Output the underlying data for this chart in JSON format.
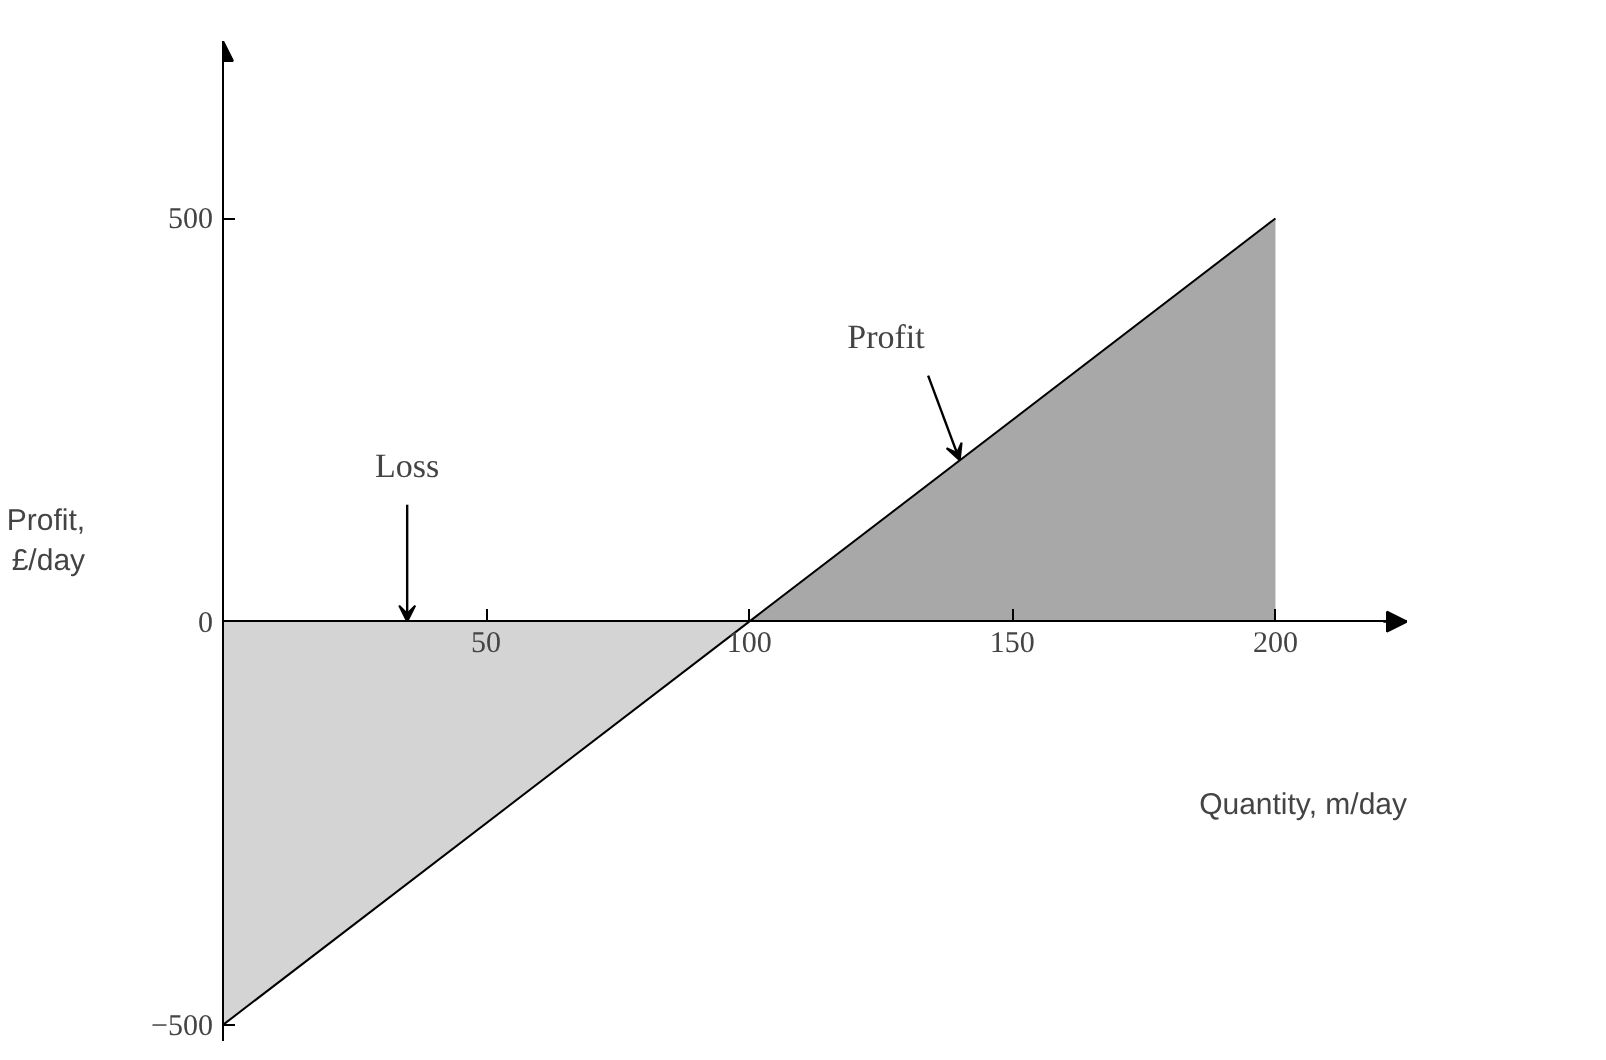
{
  "chart_data": {
    "type": "area",
    "xlabel": "Quantity, m/day",
    "ylabel": "Profit,\n£/day",
    "series": [
      {
        "x": [
          0,
          100
        ],
        "values": [
          -500,
          0
        ],
        "color": "#d4d4d4"
      },
      {
        "x": [
          100,
          200
        ],
        "values": [
          0,
          500
        ],
        "color": "#a8a8a8"
      }
    ],
    "xlim": [
      0,
      225
    ],
    "ylim": [
      -520,
      720
    ],
    "xticks": [
      50,
      100,
      150,
      200
    ],
    "yticks": [
      -500,
      0,
      500
    ],
    "annotations": [
      {
        "text": "Loss",
        "x": 35,
        "y": 0
      },
      {
        "text": "Profit",
        "x": 140,
        "y": 200
      }
    ],
    "grid": false
  }
}
